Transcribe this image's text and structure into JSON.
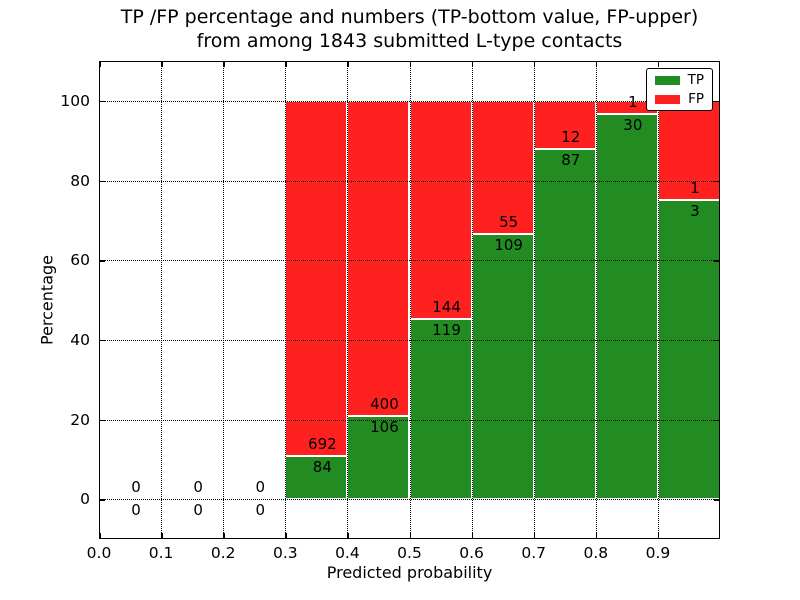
{
  "figure": {
    "title_line1": "TP /FP percentage and numbers (TP-bottom value, FP-upper)",
    "title_line2": "from among 1843 submitted L-type contacts",
    "background": "#ffffff"
  },
  "chart_data": {
    "type": "bar",
    "stacked": true,
    "title": "TP /FP percentage and numbers (TP-bottom value, FP-upper) from among 1843 submitted L-type contacts",
    "xlabel": "Predicted probability",
    "ylabel": "Percentage",
    "xlim": [
      0,
      1
    ],
    "ylim": [
      -10,
      110
    ],
    "bar_width": 0.1,
    "grid": true,
    "grid_style": "dotted",
    "total_contacts": 1843,
    "x_tick_values": [
      0,
      0.1,
      0.2,
      0.3,
      0.4,
      0.5,
      0.6,
      0.7,
      0.8,
      0.9
    ],
    "x_tick_labels": [
      "0.0",
      "0.1",
      "0.2",
      "0.3",
      "0.4",
      "0.5",
      "0.6",
      "0.7",
      "0.8",
      "0.9"
    ],
    "y_tick_values": [
      0,
      20,
      40,
      60,
      80,
      100
    ],
    "y_tick_labels": [
      "0",
      "20",
      "40",
      "60",
      "80",
      "100"
    ],
    "legend": {
      "position": "upper-right",
      "entries": [
        {
          "name": "TP",
          "color": "#228b22"
        },
        {
          "name": "FP",
          "color": "#ff2020"
        }
      ]
    },
    "bars": [
      {
        "x0": 0.0,
        "x1": 0.1,
        "tp": 0,
        "fp": 0
      },
      {
        "x0": 0.1,
        "x1": 0.2,
        "tp": 0,
        "fp": 0
      },
      {
        "x0": 0.2,
        "x1": 0.3,
        "tp": 0,
        "fp": 0
      },
      {
        "x0": 0.3,
        "x1": 0.4,
        "tp": 84,
        "fp": 692,
        "tp_pct": 10.82,
        "fp_pct": 89.18
      },
      {
        "x0": 0.4,
        "x1": 0.5,
        "tp": 106,
        "fp": 400,
        "tp_pct": 20.95,
        "fp_pct": 79.05
      },
      {
        "x0": 0.5,
        "x1": 0.6,
        "tp": 119,
        "fp": 144,
        "tp_pct": 45.25,
        "fp_pct": 54.75
      },
      {
        "x0": 0.6,
        "x1": 0.7,
        "tp": 109,
        "fp": 55,
        "tp_pct": 66.46,
        "fp_pct": 33.54
      },
      {
        "x0": 0.7,
        "x1": 0.8,
        "tp": 87,
        "fp": 12,
        "tp_pct": 87.88,
        "fp_pct": 12.12
      },
      {
        "x0": 0.8,
        "x1": 0.9,
        "tp": 30,
        "fp": 1,
        "tp_pct": 96.77,
        "fp_pct": 3.23
      },
      {
        "x0": 0.9,
        "x1": 1.0,
        "tp": 3,
        "fp": 1,
        "tp_pct": 75.0,
        "fp_pct": 25.0
      }
    ]
  }
}
